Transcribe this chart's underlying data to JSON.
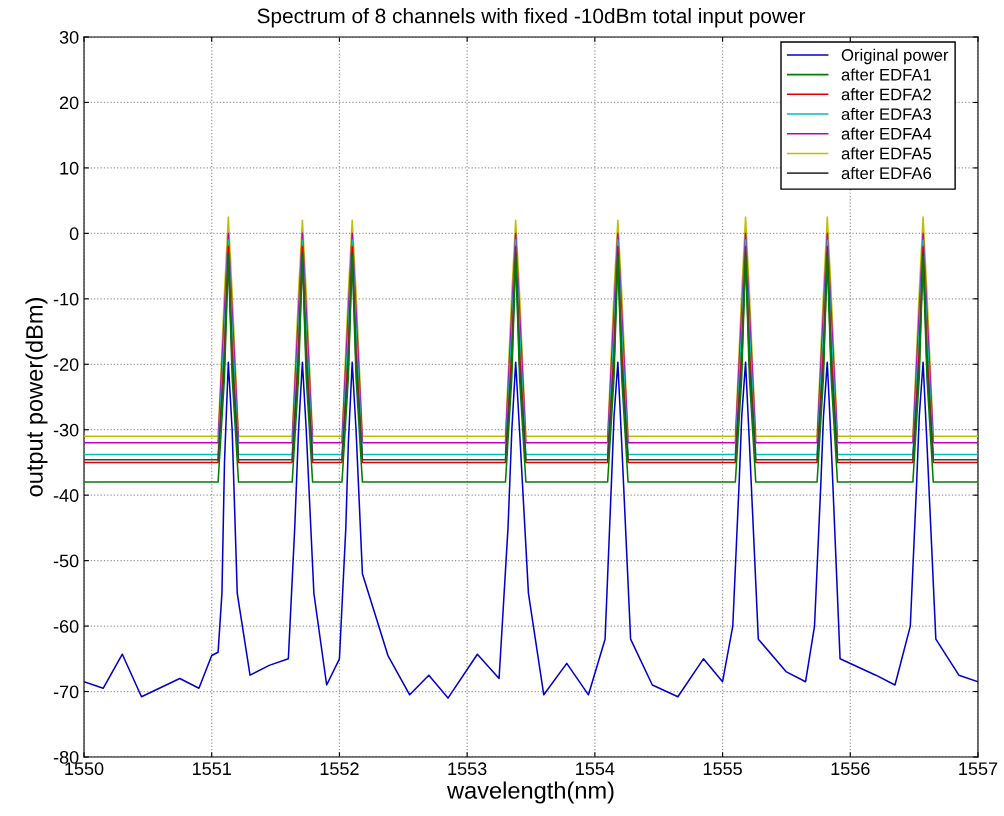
{
  "chart_data": {
    "type": "line",
    "title": "Spectrum of 8 channels with fixed -10dBm total input power",
    "xlabel": "wavelength(nm)",
    "ylabel": "output power(dBm)",
    "xlim": [
      1550,
      1557
    ],
    "xticks": [
      1550,
      1551,
      1552,
      1553,
      1554,
      1555,
      1556,
      1557
    ],
    "ylim": [
      -80,
      30
    ],
    "yticks": [
      -80,
      -70,
      -60,
      -50,
      -40,
      -30,
      -20,
      -10,
      0,
      10,
      20,
      30
    ],
    "grid": true,
    "legend": "top right",
    "marker": "none",
    "line_style": "solid",
    "series": [
      {
        "name": "Original power",
        "color": "#0000cc",
        "x": [
          1550.0,
          1550.15,
          1550.3,
          1550.45,
          1550.75,
          1550.9,
          1551.0,
          1551.05,
          1551.08,
          1551.1,
          1551.13,
          1551.16,
          1551.2,
          1551.3,
          1551.45,
          1551.6,
          1551.65,
          1551.68,
          1551.71,
          1551.74,
          1551.8,
          1551.9,
          1552.0,
          1552.05,
          1552.07,
          1552.1,
          1552.13,
          1552.18,
          1552.38,
          1552.55,
          1552.7,
          1552.85,
          1553.08,
          1553.25,
          1553.32,
          1553.35,
          1553.38,
          1553.41,
          1553.48,
          1553.6,
          1553.78,
          1553.95,
          1554.08,
          1554.13,
          1554.15,
          1554.18,
          1554.21,
          1554.28,
          1554.45,
          1554.65,
          1554.85,
          1555.0,
          1555.08,
          1555.13,
          1555.15,
          1555.18,
          1555.21,
          1555.28,
          1555.5,
          1555.65,
          1555.72,
          1555.77,
          1555.79,
          1555.82,
          1555.85,
          1555.92,
          1556.2,
          1556.35,
          1556.47,
          1556.52,
          1556.54,
          1556.57,
          1556.6,
          1556.67,
          1556.85,
          1557.0
        ],
        "values": [
          -68.5,
          -69.5,
          -64.3,
          -70.8,
          -68,
          -69.5,
          -64.5,
          -64,
          -55,
          -35,
          -19.7,
          -30,
          -55,
          -67.5,
          -66,
          -65,
          -45,
          -30,
          -19.7,
          -30,
          -55,
          -69,
          -65,
          -45,
          -32,
          -19.7,
          -30,
          -52,
          -64.5,
          -70.5,
          -67.5,
          -71,
          -64.3,
          -68,
          -45,
          -30,
          -19.7,
          -30,
          -55,
          -70.5,
          -65.7,
          -70.5,
          -62,
          -38,
          -28,
          -19.7,
          -32,
          -62,
          -69,
          -70.8,
          -65,
          -68.5,
          -60,
          -38,
          -28,
          -19.7,
          -32,
          -62,
          -67,
          -68.5,
          -60,
          -38,
          -28,
          -19.7,
          -32,
          -65,
          -67.5,
          -69,
          -60,
          -38,
          -28,
          -19.7,
          -32,
          -62,
          -67.5,
          -68.5
        ]
      },
      {
        "name": "after EDFA1",
        "color": "#007f00",
        "x": [
          1550.0,
          1551.05,
          1551.1,
          1551.13,
          1551.16,
          1551.21,
          1551.63,
          1551.68,
          1551.71,
          1551.74,
          1551.79,
          1552.02,
          1552.07,
          1552.1,
          1552.13,
          1552.18,
          1553.3,
          1553.35,
          1553.38,
          1553.41,
          1553.46,
          1554.1,
          1554.15,
          1554.18,
          1554.21,
          1554.26,
          1555.1,
          1555.15,
          1555.18,
          1555.21,
          1555.26,
          1555.74,
          1555.79,
          1555.82,
          1555.85,
          1555.9,
          1556.49,
          1556.54,
          1556.57,
          1556.6,
          1556.65,
          1557.0
        ],
        "values": [
          -38,
          -38,
          -22,
          -3.5,
          -22,
          -38,
          -38,
          -22,
          -3.5,
          -22,
          -38,
          -38,
          -22,
          -3.5,
          -22,
          -38,
          -38,
          -22,
          -3.5,
          -22,
          -38,
          -38,
          -22,
          -3.5,
          -22,
          -38,
          -38,
          -22,
          -3.5,
          -22,
          -38,
          -38,
          -22,
          -3.5,
          -22,
          -38,
          -38,
          -22,
          -3.5,
          -22,
          -38,
          -38
        ]
      },
      {
        "name": "after EDFA2",
        "color": "#e00000",
        "x": [
          1550.0,
          1551.05,
          1551.1,
          1551.13,
          1551.16,
          1551.21,
          1551.63,
          1551.68,
          1551.71,
          1551.74,
          1551.79,
          1552.02,
          1552.07,
          1552.1,
          1552.13,
          1552.18,
          1553.3,
          1553.35,
          1553.38,
          1553.41,
          1553.46,
          1554.1,
          1554.15,
          1554.18,
          1554.21,
          1554.26,
          1555.1,
          1555.15,
          1555.18,
          1555.21,
          1555.26,
          1555.74,
          1555.79,
          1555.82,
          1555.85,
          1555.9,
          1556.49,
          1556.54,
          1556.57,
          1556.6,
          1556.65,
          1557.0
        ],
        "values": [
          -35,
          -35,
          -18,
          -2,
          -18,
          -35,
          -35,
          -18,
          -2,
          -18,
          -35,
          -35,
          -18,
          -2,
          -18,
          -35,
          -35,
          -18,
          -2,
          -18,
          -35,
          -35,
          -18,
          -2,
          -18,
          -35,
          -35,
          -18,
          -2,
          -18,
          -35,
          -35,
          -18,
          -2,
          -18,
          -35,
          -35,
          -18,
          -2,
          -18,
          -35,
          -35
        ]
      },
      {
        "name": "after EDFA3",
        "color": "#00bfbf",
        "x": [
          1550.0,
          1551.05,
          1551.1,
          1551.13,
          1551.16,
          1551.21,
          1551.63,
          1551.68,
          1551.71,
          1551.74,
          1551.79,
          1552.02,
          1552.07,
          1552.1,
          1552.13,
          1552.18,
          1553.3,
          1553.35,
          1553.38,
          1553.41,
          1553.46,
          1554.1,
          1554.15,
          1554.18,
          1554.21,
          1554.26,
          1555.1,
          1555.15,
          1555.18,
          1555.21,
          1555.26,
          1555.74,
          1555.79,
          1555.82,
          1555.85,
          1555.9,
          1556.49,
          1556.54,
          1556.57,
          1556.6,
          1556.65,
          1557.0
        ],
        "values": [
          -33.8,
          -33.8,
          -15,
          -1,
          -15,
          -33.8,
          -33.8,
          -15,
          -1,
          -15,
          -33.8,
          -33.8,
          -15,
          -1,
          -15,
          -33.8,
          -33.8,
          -15,
          -1,
          -15,
          -33.8,
          -33.8,
          -15,
          -1,
          -15,
          -33.8,
          -33.8,
          -15,
          -1,
          -15,
          -33.8,
          -33.8,
          -15,
          -1,
          -15,
          -33.8,
          -33.8,
          -15,
          -1,
          -15,
          -33.8,
          -33.8
        ]
      },
      {
        "name": "after EDFA4",
        "color": "#bf00bf",
        "x": [
          1550.0,
          1551.05,
          1551.1,
          1551.13,
          1551.16,
          1551.21,
          1551.63,
          1551.68,
          1551.71,
          1551.74,
          1551.79,
          1552.02,
          1552.07,
          1552.1,
          1552.13,
          1552.18,
          1553.3,
          1553.35,
          1553.38,
          1553.41,
          1553.46,
          1554.1,
          1554.15,
          1554.18,
          1554.21,
          1554.26,
          1555.1,
          1555.15,
          1555.18,
          1555.21,
          1555.26,
          1555.74,
          1555.79,
          1555.82,
          1555.85,
          1555.9,
          1556.49,
          1556.54,
          1556.57,
          1556.6,
          1556.65,
          1557.0
        ],
        "values": [
          -32,
          -32,
          -12,
          0,
          -12,
          -32,
          -32,
          -12,
          0,
          -12,
          -32,
          -32,
          -12,
          0,
          -12,
          -32,
          -32,
          -12,
          0,
          -12,
          -32,
          -32,
          -12,
          0,
          -12,
          -32,
          -32,
          -12,
          0,
          -12,
          -32,
          -32,
          -12,
          0,
          -12,
          -32,
          -32,
          -12,
          0,
          -12,
          -32,
          -32
        ]
      },
      {
        "name": "after EDFA5",
        "color": "#bfbf00",
        "x": [
          1550.0,
          1551.05,
          1551.1,
          1551.13,
          1551.16,
          1551.21,
          1551.63,
          1551.68,
          1551.71,
          1551.74,
          1551.79,
          1552.02,
          1552.07,
          1552.1,
          1552.13,
          1552.18,
          1553.3,
          1553.35,
          1553.38,
          1553.41,
          1553.46,
          1554.1,
          1554.15,
          1554.18,
          1554.21,
          1554.26,
          1555.1,
          1555.15,
          1555.18,
          1555.21,
          1555.26,
          1555.74,
          1555.79,
          1555.82,
          1555.85,
          1555.9,
          1556.49,
          1556.54,
          1556.57,
          1556.6,
          1556.65,
          1557.0
        ],
        "values": [
          -31,
          -31,
          -9,
          2.5,
          -9,
          -31,
          -31,
          -9,
          2,
          -9,
          -31,
          -31,
          -9,
          2,
          -9,
          -31,
          -31,
          -9,
          2,
          -9,
          -31,
          -31,
          -9,
          2,
          -9,
          -31,
          -31,
          -9,
          2.5,
          -9,
          -31,
          -31,
          -9,
          2.5,
          -9,
          -31,
          -31,
          -9,
          2.5,
          -9,
          -31,
          -31
        ]
      },
      {
        "name": "after EDFA6",
        "color": "#404040",
        "x": [
          1550.0,
          1551.05,
          1551.1,
          1551.13,
          1551.16,
          1551.21,
          1551.63,
          1551.68,
          1551.71,
          1551.74,
          1551.79,
          1552.02,
          1552.07,
          1552.1,
          1552.13,
          1552.18,
          1553.3,
          1553.35,
          1553.38,
          1553.41,
          1553.46,
          1554.1,
          1554.15,
          1554.18,
          1554.21,
          1554.26,
          1555.1,
          1555.15,
          1555.18,
          1555.21,
          1555.26,
          1555.74,
          1555.79,
          1555.82,
          1555.85,
          1555.9,
          1556.49,
          1556.54,
          1556.57,
          1556.6,
          1556.65,
          1557.0
        ],
        "values": [
          -34.6,
          -34.6,
          -20,
          -3,
          -20,
          -34.6,
          -34.6,
          -20,
          -3,
          -20,
          -34.6,
          -34.6,
          -20,
          -3,
          -20,
          -34.6,
          -34.6,
          -20,
          -3,
          -20,
          -34.6,
          -34.6,
          -20,
          -3,
          -20,
          -34.6,
          -34.6,
          -20,
          -3,
          -20,
          -34.6,
          -34.6,
          -20,
          -3,
          -20,
          -34.6,
          -34.6,
          -20,
          -3,
          -20,
          -34.6,
          -34.6
        ]
      }
    ]
  }
}
